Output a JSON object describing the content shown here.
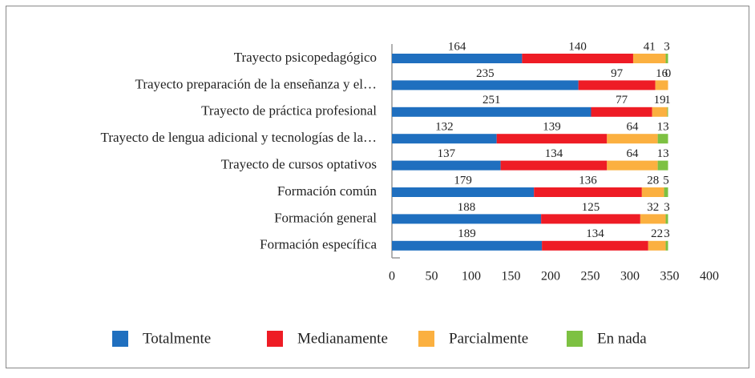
{
  "chart_data": {
    "type": "stacked_barh",
    "categories": [
      "Trayecto psicopedagógico",
      "Trayecto preparación de la enseñanza y el…",
      "Trayecto de práctica profesional",
      "Trayecto de lengua adicional y tecnologías de la…",
      "Trayecto de cursos optativos",
      "Formación común",
      "Formación general",
      "Formación específica"
    ],
    "series": [
      {
        "name": "Totalmente",
        "color": "#1f6fbf",
        "values": [
          164,
          235,
          251,
          132,
          137,
          179,
          188,
          189
        ]
      },
      {
        "name": "Medianamente",
        "color": "#ee1c25",
        "values": [
          140,
          97,
          77,
          139,
          134,
          136,
          125,
          134
        ]
      },
      {
        "name": "Parcialmente",
        "color": "#fbb040",
        "values": [
          41,
          16,
          19,
          64,
          64,
          28,
          32,
          22
        ]
      },
      {
        "name": "En nada",
        "color": "#7dc142",
        "values": [
          3,
          0,
          1,
          13,
          13,
          5,
          3,
          3
        ]
      }
    ],
    "xlim": [
      0,
      400
    ],
    "xticks": [
      0,
      50,
      100,
      150,
      200,
      250,
      300,
      350,
      400
    ],
    "legend": "bottom"
  }
}
